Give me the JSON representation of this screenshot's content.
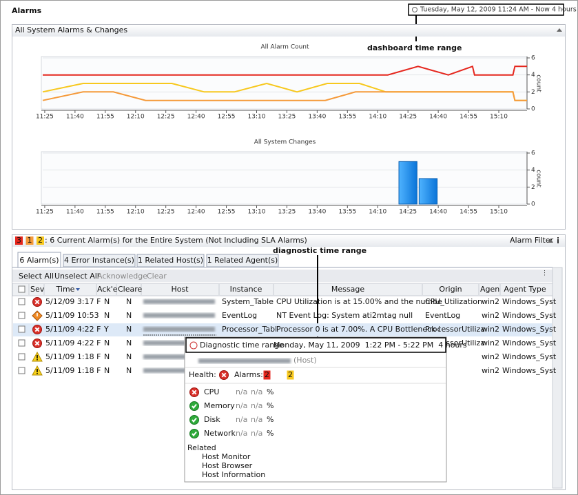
{
  "header": {
    "title": "Alarms",
    "time_range": "Tuesday, May 12, 2009 11:24 AM - Now 4 hours"
  },
  "annotations": {
    "dashboard": "dashboard time range",
    "diagnostic": "diagnostic time range"
  },
  "charts_panel": {
    "title": "All System Alarms & Changes"
  },
  "chart_data": [
    {
      "type": "line",
      "title": "All Alarm Count",
      "y_label": "count",
      "xlim": [
        "11:24",
        "15:24"
      ],
      "xticks": [
        "11:25",
        "11:40",
        "11:55",
        "12:10",
        "12:25",
        "12:40",
        "12:55",
        "13:10",
        "13:25",
        "13:40",
        "13:55",
        "14:10",
        "14:25",
        "14:40",
        "14:55",
        "15:10"
      ],
      "ylim": [
        0,
        6
      ],
      "yticks": [
        0,
        2,
        4,
        6
      ],
      "grid": true,
      "series": [
        {
          "color": "#e5261d",
          "x": [
            "11:24",
            "14:15",
            "14:30",
            "14:45",
            "14:57",
            "14:58",
            "15:17",
            "15:18",
            "15:24"
          ],
          "values": [
            4,
            4,
            5,
            4,
            5,
            4,
            4,
            5,
            5
          ]
        },
        {
          "color": "#f7c81e",
          "x": [
            "11:24",
            "11:44",
            "12:28",
            "12:44",
            "12:59",
            "13:15",
            "13:30",
            "13:45",
            "14:01",
            "14:14",
            "15:17",
            "15:18",
            "15:24"
          ],
          "values": [
            2,
            3,
            3,
            2,
            2,
            3,
            2,
            3,
            3,
            2,
            2,
            1,
            1
          ]
        },
        {
          "color": "#f59a3a",
          "x": [
            "11:24",
            "11:44",
            "11:59",
            "12:15",
            "13:44",
            "13:59",
            "15:17",
            "15:18",
            "15:24"
          ],
          "values": [
            1,
            2,
            2,
            1,
            1,
            2,
            2,
            1,
            1
          ]
        }
      ]
    },
    {
      "type": "histogram",
      "title": "All System Changes",
      "y_label": "count",
      "xlim": [
        "11:24",
        "15:24"
      ],
      "xticks": [
        "11:25",
        "11:40",
        "11:55",
        "12:10",
        "12:25",
        "12:40",
        "12:55",
        "13:10",
        "13:25",
        "13:40",
        "13:55",
        "14:10",
        "14:25",
        "14:40",
        "14:55",
        "15:10"
      ],
      "ylim": [
        0,
        6
      ],
      "yticks": [
        0,
        2,
        4,
        6
      ],
      "grid": true,
      "bins": [
        "14:20",
        "14:30",
        "14:40"
      ],
      "values": [
        5,
        3
      ],
      "color": "#1b8ef0"
    }
  ],
  "alarms_panel": {
    "counts": [
      3,
      1,
      2
    ],
    "text": ": 6 Current Alarm(s) for the Entire System (Not Including SLA Alarms)",
    "filter": "Alarm Filter"
  },
  "tabs": [
    "6 Alarm(s)",
    "4 Error Instance(s)",
    "1 Related Host(s)",
    "1 Related Agent(s)"
  ],
  "toolbar": [
    "Select All",
    "Unselect All",
    "Acknowledge",
    "Clear"
  ],
  "table": {
    "columns": [
      "Sev",
      "Time",
      "Ack'e",
      "Cleare",
      "Host",
      "Instance",
      "Message",
      "Origin",
      "Agen",
      "Agent Type"
    ],
    "rows": [
      {
        "severity": "error",
        "time": "5/12/09 3:17 F",
        "acked": "N",
        "cleared": "N",
        "instance": "System_Table",
        "message": "CPU Utilization is at 15.00% and the numbe",
        "origin": "CPU_Utilization",
        "agent": "win2",
        "agent_type": "Windows_Syst"
      },
      {
        "severity": "diamond",
        "time": "5/11/09 10:53",
        "acked": "N",
        "cleared": "N",
        "instance": "EventLog",
        "message": "NT Event Log: System ati2mtag null",
        "origin": "EventLog",
        "agent": "win2",
        "agent_type": "Windows_Syst"
      },
      {
        "severity": "error",
        "time": "5/11/09 4:22 F",
        "acked": "Y",
        "cleared": "N",
        "instance": "Processor_Tabl",
        "message": "Processor 0 is at 7.00%. A CPU Bottleneck i",
        "origin": "ProcessorUtiliza",
        "agent": "win2",
        "agent_type": "Windows_Syst"
      },
      {
        "severity": "error",
        "time": "5/11/09 4:22 F",
        "acked": "N",
        "cleared": "N",
        "instance": null,
        "message": null,
        "origin": "ProcessorUtiliza",
        "agent": "win2",
        "agent_type": "Windows_Syst"
      },
      {
        "severity": "warning",
        "time": "5/11/09 1:18 F",
        "acked": "N",
        "cleared": "N",
        "instance": null,
        "message": null,
        "origin": null,
        "agent": "win2",
        "agent_type": "Windows_Syst"
      },
      {
        "severity": "warning",
        "time": "5/11/09 1:18 F",
        "acked": "N",
        "cleared": "N",
        "instance": null,
        "message": null,
        "origin": null,
        "agent": "win2",
        "agent_type": "Windows_Syst"
      }
    ]
  },
  "popup": {
    "title": "Diagnostic time range",
    "range": "Monday, May 11, 2009  1:22 PM - 5:22 PM  4 hours",
    "host": "(Host)",
    "health": "Health:",
    "alarms": "Alarms:",
    "alarm_counts": [
      2,
      2
    ],
    "metrics": [
      {
        "name": "CPU",
        "v1": "n/a",
        "v2": "n/a",
        "unit": "%"
      },
      {
        "name": "Memory",
        "v1": "n/a",
        "v2": "n/a",
        "unit": "%"
      },
      {
        "name": "Disk",
        "v1": "n/a",
        "v2": "n/a",
        "unit": "%"
      },
      {
        "name": "Network",
        "v1": "n/a",
        "v2": "n/a",
        "unit": "%"
      }
    ],
    "related": "Related",
    "links": [
      "Host Monitor",
      "Host Browser",
      "Host Information"
    ]
  }
}
